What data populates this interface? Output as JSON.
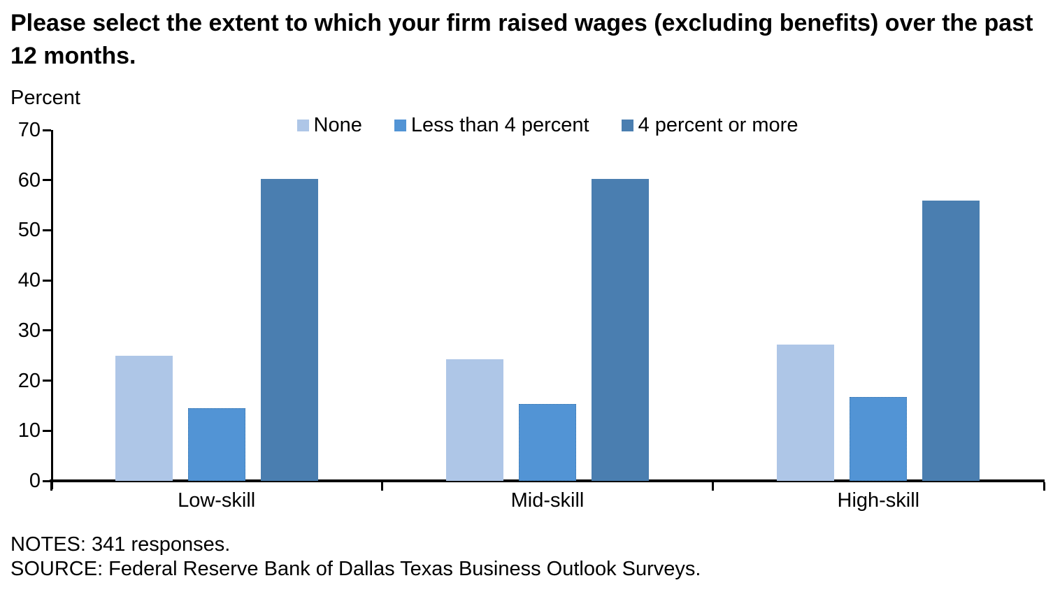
{
  "title": "Please select the extent to which your firm raised wages (excluding benefits) over the past 12 months.",
  "y_axis_label": "Percent",
  "notes": "NOTES: 341 responses.",
  "source": "SOURCE: Federal Reserve Bank of Dallas Texas Business Outlook Surveys.",
  "colors": {
    "none": "#aec6e7",
    "less_than_4_percent": "#5294d5",
    "4_percent_or_more": "#4a7eb0",
    "axis": "#000000"
  },
  "chart_data": {
    "type": "bar",
    "categories": [
      "Low-skill",
      "Mid-skill",
      "High-skill"
    ],
    "series": [
      {
        "name": "None",
        "color": "#aec6e7",
        "values": [
          25.0,
          24.3,
          27.2
        ]
      },
      {
        "name": "Less than 4 percent",
        "color": "#5294d5",
        "values": [
          14.5,
          15.3,
          16.7
        ]
      },
      {
        "name": "4 percent or more",
        "color": "#4a7eb0",
        "values": [
          60.3,
          60.2,
          55.9
        ]
      }
    ],
    "ylabel": "Percent",
    "xlabel": "",
    "ylim": [
      0,
      70
    ],
    "yticks": [
      0,
      10,
      20,
      30,
      40,
      50,
      60,
      70
    ],
    "legend_position": "top-center",
    "grid": false
  }
}
